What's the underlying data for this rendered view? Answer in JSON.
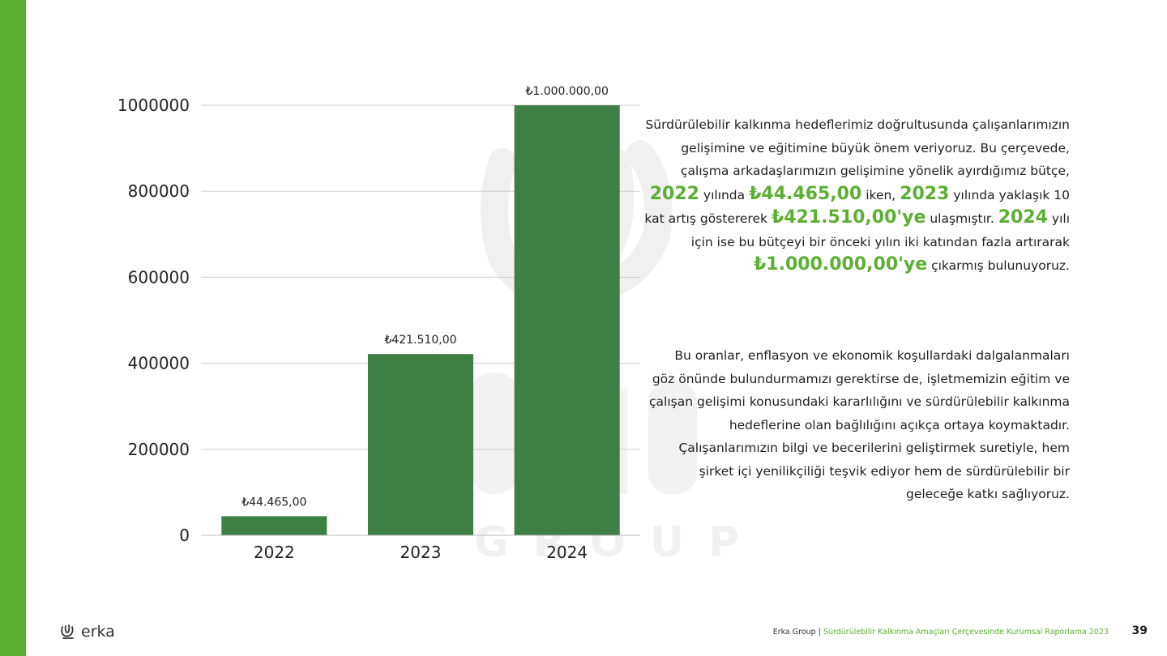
{
  "brand": {
    "name": "erka",
    "accent": "#5bb033",
    "bar_color": "#3e8044"
  },
  "watermark": {
    "text": "GROUP"
  },
  "chart_data": {
    "type": "bar",
    "categories": [
      "2022",
      "2023",
      "2024"
    ],
    "values": [
      44465,
      421510,
      1000000
    ],
    "data_labels": [
      "₺44.465,00",
      "₺421.510,00",
      "₺1.000.000,00"
    ],
    "yticks": [
      0,
      200000,
      400000,
      600000,
      800000,
      1000000
    ],
    "ylim": [
      0,
      1000000
    ],
    "grid": true,
    "title": "",
    "xlabel": "",
    "ylabel": ""
  },
  "paragraph1": {
    "s1": "Sürdürülebilir kalkınma hedeflerimiz doğrultusunda çalışanlarımızın gelişimine ve eğitimine büyük önem veriyoruz. Bu çerçevede, çalışma arkadaşlarımızın gelişimine yönelik ayırdığımız bütçe,",
    "h1": "2022",
    "s2": "yılında",
    "h2": "₺44.465,00",
    "s3": "iken,",
    "h3": "2023",
    "s4": "yılında yaklaşık 10 kat artış göstererek",
    "h4": "₺421.510,00'ye",
    "s5": "ulaşmıştır.",
    "h5": "2024",
    "s6": "yılı için ise bu bütçeyi bir önceki yılın iki katından fazla artırarak",
    "h6": "₺1.000.000,00'ye",
    "s7": "çıkarmış bulunuyoruz."
  },
  "paragraph2": "Bu oranlar, enflasyon ve ekonomik koşullardaki dalgalanmaları göz önünde bulundurmamızı gerektirse de, işletmemizin eğitim ve çalışan gelişimi konusundaki kararlılığını ve sürdürülebilir kalkınma hedeflerine olan bağlılığını açıkça ortaya koymaktadır. Çalışanlarımızın bilgi ve becerilerini geliştirmek suretiyle, hem şirket içi yenilikçiliği teşvik ediyor hem de sürdürülebilir bir geleceğe katkı sağlıyoruz.",
  "footer": {
    "logo_text": "erka",
    "company": "Erka Group",
    "separator": "|",
    "report_title": "Sürdürülebilir Kalkınma Amaçları Çerçevesinde Kurumsal Raporlama 2023",
    "page_number": "39"
  }
}
